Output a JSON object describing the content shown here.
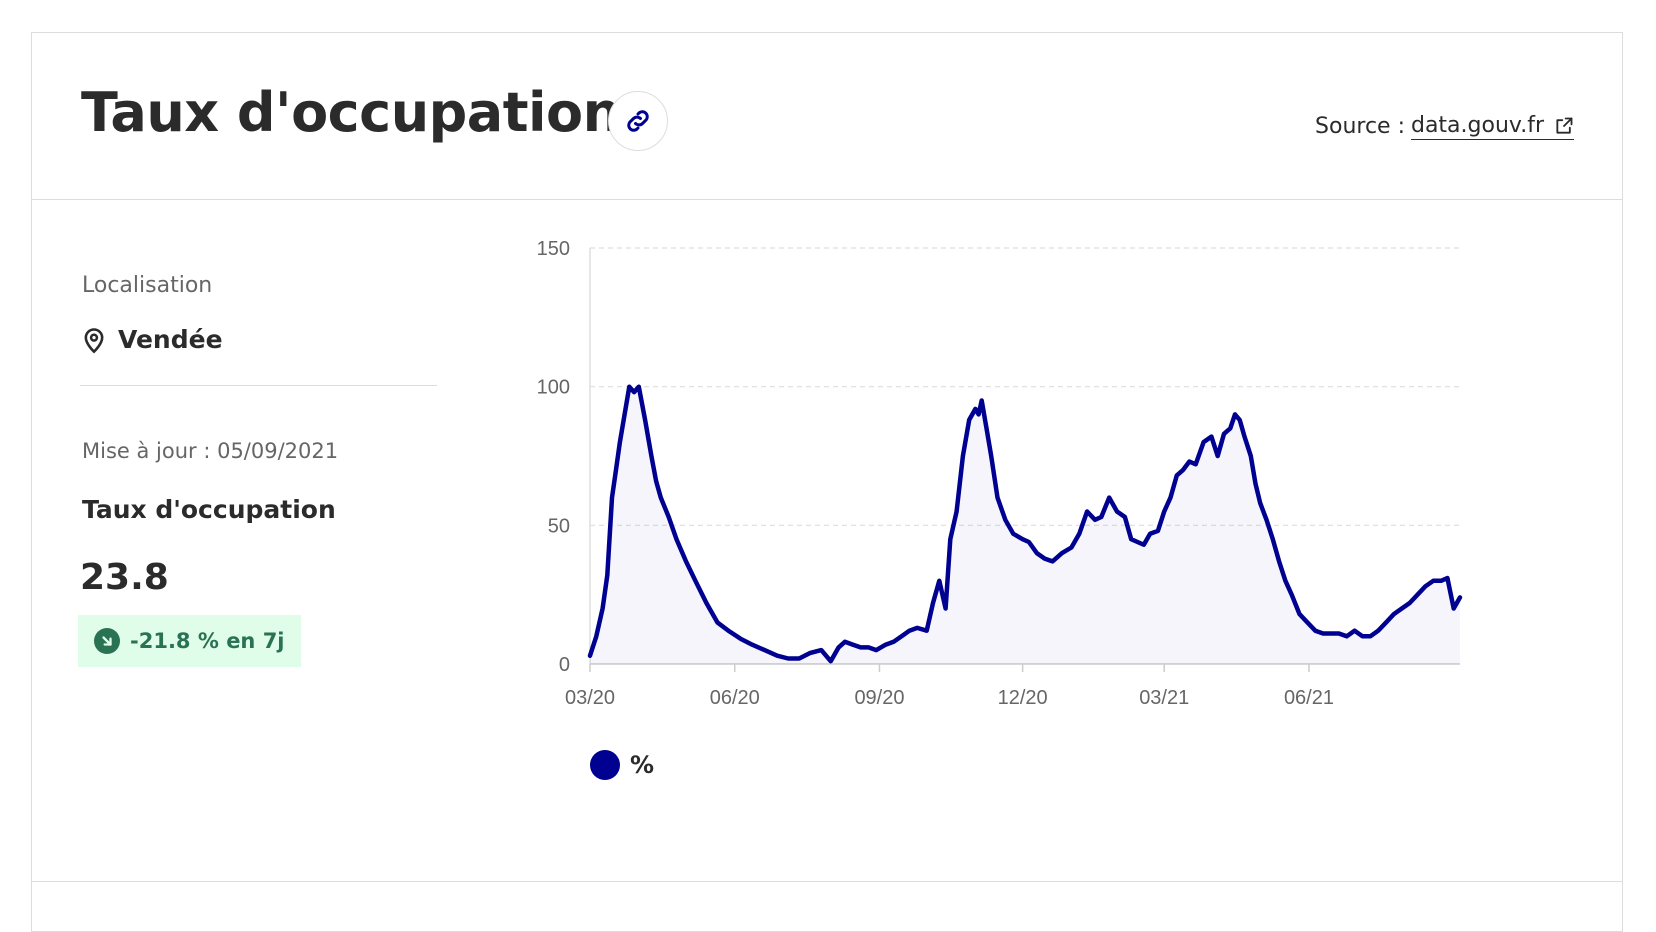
{
  "header": {
    "title": "Taux d'occupation",
    "source_prefix": "Source :",
    "source_link": "data.gouv.fr"
  },
  "sidebar": {
    "location_label": "Localisation",
    "location_value": "Vendée",
    "updated": "Mise à jour : 05/09/2021",
    "metric_label": "Taux d'occupation",
    "metric_value": "23.8",
    "trend": "-21.8 % en 7j"
  },
  "colors": {
    "series": "#000091",
    "trend_text": "#297254",
    "trend_bg": "#dffde9"
  },
  "icons": {
    "link": "link-icon",
    "external": "external-link-icon",
    "location": "map-pin-icon",
    "trend": "arrow-down-right-icon"
  },
  "chart_data": {
    "type": "area",
    "title": "",
    "xlabel": "",
    "ylabel": "",
    "ylim": [
      0,
      150
    ],
    "yticks": [
      "0",
      "50",
      "100",
      "150"
    ],
    "x_tick_labels": [
      "03/20",
      "06/20",
      "09/20",
      "12/20",
      "03/21",
      "06/21"
    ],
    "x_tick_dates": [
      "2020-03-01",
      "2020-06-01",
      "2020-09-01",
      "2020-12-01",
      "2021-03-01",
      "2021-06-01"
    ],
    "xlim": [
      "2020-03-01",
      "2021-09-05"
    ],
    "grid": true,
    "legend": "bottom-left",
    "series": [
      {
        "name": "%",
        "x": [
          "2020-03-01",
          "2020-03-05",
          "2020-03-09",
          "2020-03-12",
          "2020-03-15",
          "2020-03-17",
          "2020-03-20",
          "2020-03-23",
          "2020-03-26",
          "2020-03-29",
          "2020-04-01",
          "2020-04-05",
          "2020-04-09",
          "2020-04-12",
          "2020-04-15",
          "2020-04-20",
          "2020-04-25",
          "2020-05-01",
          "2020-05-07",
          "2020-05-14",
          "2020-05-21",
          "2020-05-28",
          "2020-06-05",
          "2020-06-12",
          "2020-06-20",
          "2020-06-28",
          "2020-07-05",
          "2020-07-12",
          "2020-07-19",
          "2020-07-26",
          "2020-08-01",
          "2020-08-06",
          "2020-08-10",
          "2020-08-15",
          "2020-08-20",
          "2020-08-25",
          "2020-08-30",
          "2020-09-05",
          "2020-09-10",
          "2020-09-15",
          "2020-09-20",
          "2020-09-25",
          "2020-10-01",
          "2020-10-05",
          "2020-10-09",
          "2020-10-13",
          "2020-10-16",
          "2020-10-20",
          "2020-10-24",
          "2020-10-28",
          "2020-11-01",
          "2020-11-03",
          "2020-11-05",
          "2020-11-08",
          "2020-11-11",
          "2020-11-15",
          "2020-11-20",
          "2020-11-25",
          "2020-12-01",
          "2020-12-05",
          "2020-12-10",
          "2020-12-15",
          "2020-12-20",
          "2020-12-26",
          "2021-01-01",
          "2021-01-06",
          "2021-01-11",
          "2021-01-16",
          "2021-01-20",
          "2021-01-25",
          "2021-01-30",
          "2021-02-04",
          "2021-02-08",
          "2021-02-12",
          "2021-02-16",
          "2021-02-20",
          "2021-02-25",
          "2021-03-01",
          "2021-03-05",
          "2021-03-09",
          "2021-03-13",
          "2021-03-17",
          "2021-03-21",
          "2021-03-26",
          "2021-03-31",
          "2021-04-04",
          "2021-04-08",
          "2021-04-12",
          "2021-04-15",
          "2021-04-18",
          "2021-04-21",
          "2021-04-25",
          "2021-04-28",
          "2021-05-01",
          "2021-05-05",
          "2021-05-09",
          "2021-05-13",
          "2021-05-17",
          "2021-05-21",
          "2021-05-26",
          "2021-05-31",
          "2021-06-05",
          "2021-06-10",
          "2021-06-15",
          "2021-06-20",
          "2021-06-25",
          "2021-06-30",
          "2021-07-05",
          "2021-07-10",
          "2021-07-15",
          "2021-07-20",
          "2021-07-25",
          "2021-07-30",
          "2021-08-04",
          "2021-08-09",
          "2021-08-14",
          "2021-08-19",
          "2021-08-24",
          "2021-08-28",
          "2021-09-01",
          "2021-09-05"
        ],
        "values": [
          3,
          10,
          20,
          32,
          60,
          68,
          80,
          90,
          100,
          98,
          100,
          88,
          75,
          66,
          60,
          53,
          45,
          37,
          30,
          22,
          15,
          12,
          9,
          7,
          5,
          3,
          2,
          2,
          4,
          5,
          1,
          6,
          8,
          7,
          6,
          6,
          5,
          7,
          8,
          10,
          12,
          13,
          12,
          22,
          30,
          20,
          45,
          55,
          75,
          88,
          92,
          90,
          95,
          85,
          75,
          60,
          52,
          47,
          45,
          44,
          40,
          38,
          37,
          40,
          42,
          47,
          55,
          52,
          53,
          60,
          55,
          53,
          45,
          44,
          43,
          47,
          48,
          55,
          60,
          68,
          70,
          73,
          72,
          80,
          82,
          75,
          83,
          85,
          90,
          88,
          82,
          75,
          65,
          58,
          52,
          45,
          37,
          30,
          25,
          18,
          15,
          12,
          11,
          11,
          11,
          10,
          12,
          10,
          10,
          12,
          15,
          18,
          20,
          22,
          25,
          28,
          30,
          30,
          31,
          20,
          24
        ]
      }
    ]
  }
}
